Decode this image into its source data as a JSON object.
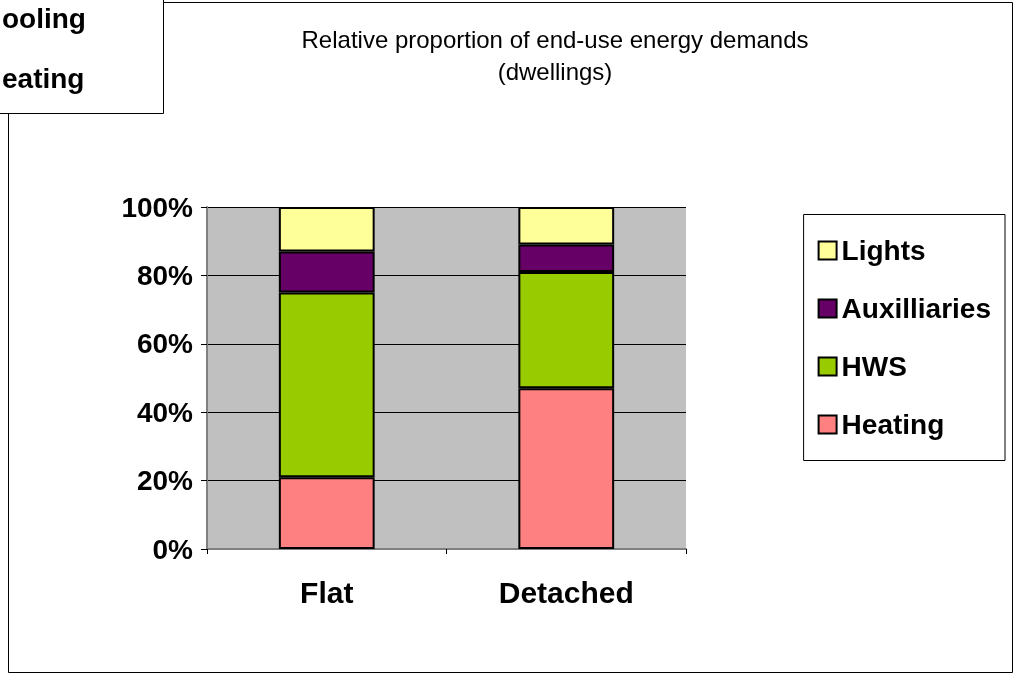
{
  "chart_data": {
    "type": "bar",
    "title": "Relative proportion of end-use energy demands\n(dwellings)",
    "categories": [
      "Flat",
      "Detached"
    ],
    "stacked": true,
    "series": [
      {
        "name": "Heating",
        "color": "#ff8080",
        "values": [
          21,
          47
        ]
      },
      {
        "name": "HWS",
        "color": "#99cc00",
        "values": [
          54,
          34
        ]
      },
      {
        "name": "Auxilliaries",
        "color": "#660066",
        "values": [
          12,
          8
        ]
      },
      {
        "name": "Lights",
        "color": "#ffff99",
        "values": [
          13,
          11
        ]
      }
    ],
    "ylim": [
      0,
      100
    ],
    "yticks": [
      {
        "value": 0,
        "label": "0%"
      },
      {
        "value": 20,
        "label": "20%"
      },
      {
        "value": 40,
        "label": "40%"
      },
      {
        "value": 60,
        "label": "60%"
      },
      {
        "value": 80,
        "label": "80%"
      },
      {
        "value": 100,
        "label": "100%"
      }
    ],
    "grid": "y",
    "legend": "right",
    "annotations": [
      "ooling",
      "eating"
    ]
  }
}
